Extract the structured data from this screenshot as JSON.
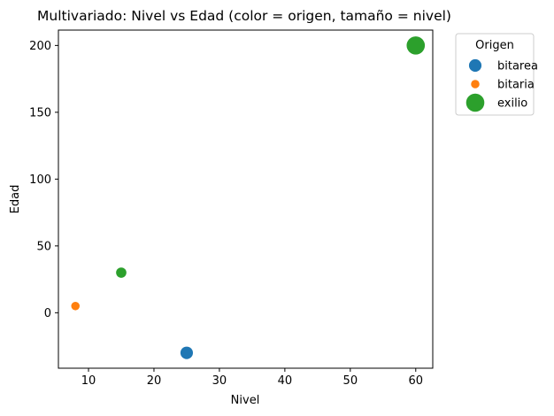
{
  "chart_data": {
    "type": "scatter",
    "title": "Multivariado: Nivel vs Edad (color = origen, tamaño = nivel)",
    "xlabel": "Nivel",
    "ylabel": "Edad",
    "xlim": [
      5.4,
      62.6
    ],
    "ylim": [
      -41.5,
      211.5
    ],
    "xticks": [
      10,
      20,
      30,
      40,
      50,
      60
    ],
    "yticks": [
      0,
      50,
      100,
      150,
      200
    ],
    "grid": false,
    "legend": {
      "title": "Origen",
      "placement": "outside-right-top",
      "entries": [
        {
          "name": "bitarea",
          "color": "#1f77b4",
          "size_level": 25
        },
        {
          "name": "bitaria",
          "color": "#ff7f0e",
          "size_level": 8
        },
        {
          "name": "exilio",
          "color": "#2ca02c",
          "size_level": 60
        }
      ]
    },
    "series": [
      {
        "name": "bitarea",
        "color": "#1f77b4",
        "points": [
          {
            "x": 25,
            "y": -30
          }
        ]
      },
      {
        "name": "bitaria",
        "color": "#ff7f0e",
        "points": [
          {
            "x": 8,
            "y": 5
          }
        ]
      },
      {
        "name": "exilio",
        "color": "#2ca02c",
        "points": [
          {
            "x": 15,
            "y": 30
          },
          {
            "x": 60,
            "y": 200
          }
        ]
      }
    ]
  }
}
